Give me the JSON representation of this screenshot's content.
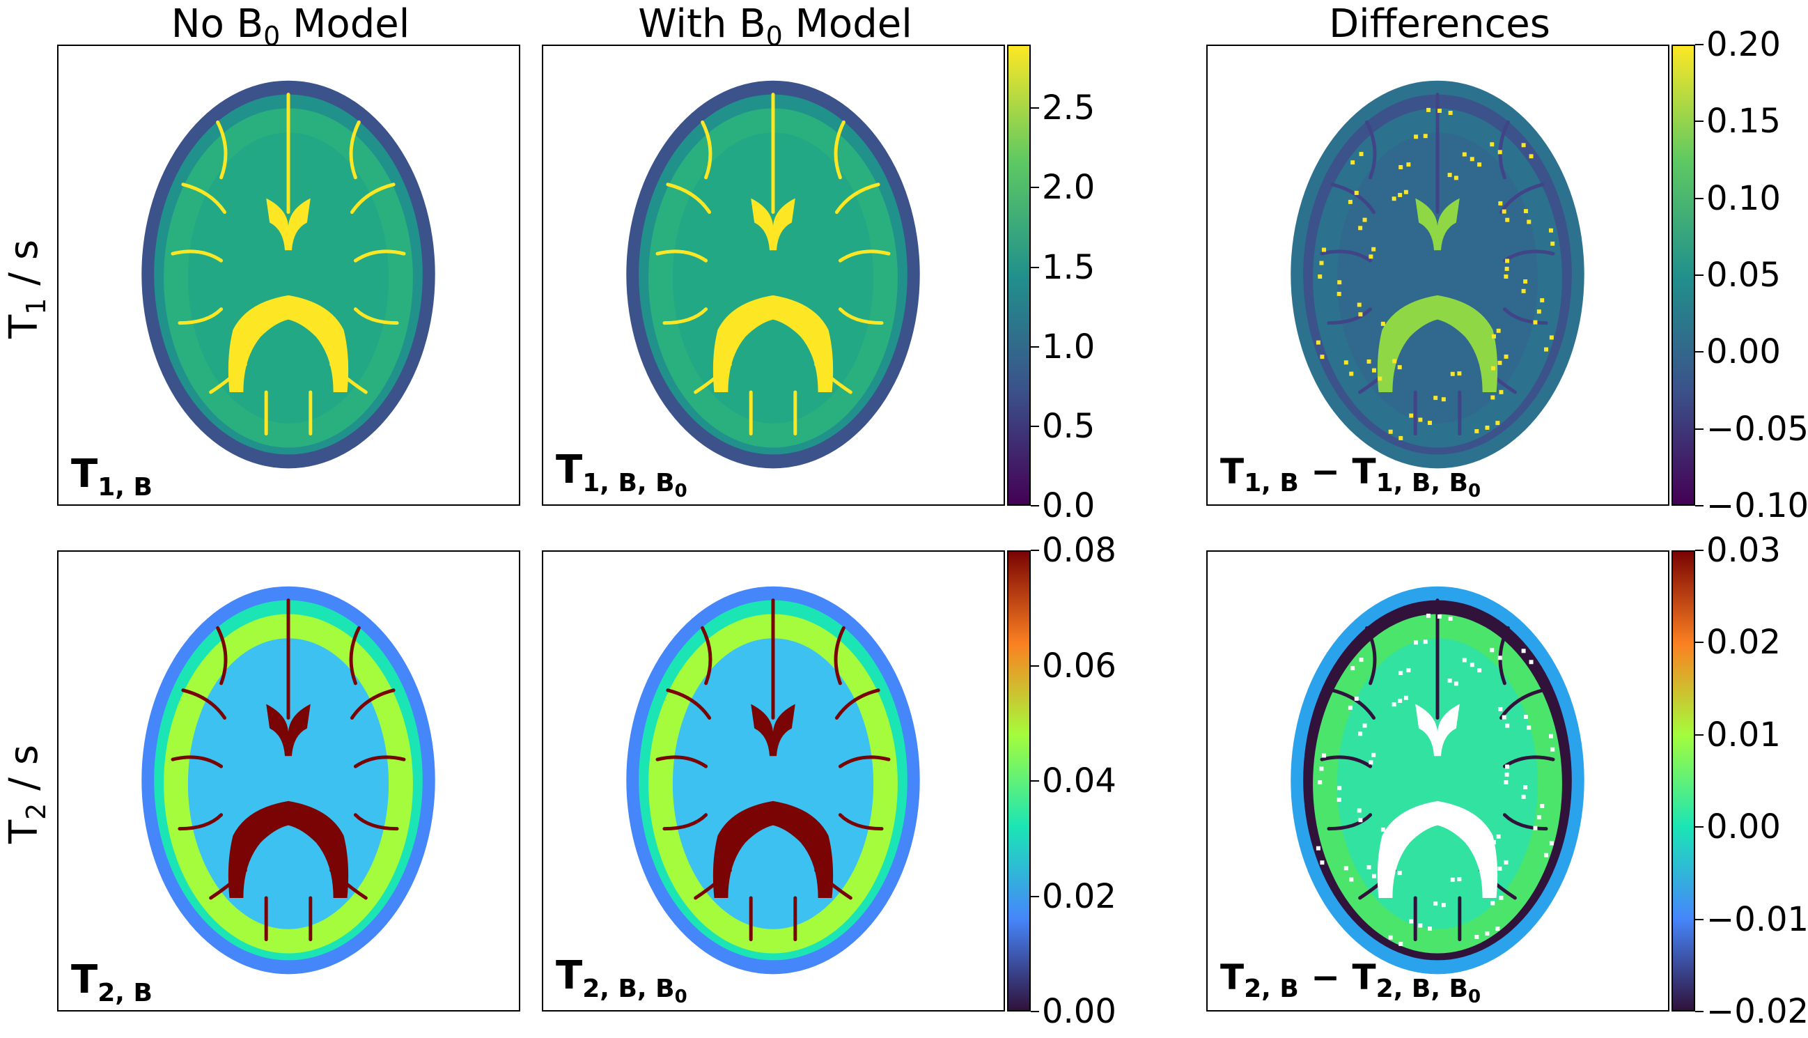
{
  "columns": {
    "c1": {
      "pre": "No B",
      "sub": "0",
      "post": " Model"
    },
    "c2": {
      "pre": "With B",
      "sub": "0",
      "post": " Model"
    },
    "c3": {
      "pre": "Differences",
      "sub": "",
      "post": ""
    }
  },
  "rows": {
    "r1": {
      "pre": "T",
      "sub": "1",
      "post": " / s"
    },
    "r2": {
      "pre": "T",
      "sub": "2",
      "post": " / s"
    }
  },
  "panel_labels": {
    "p11": "T1,B",
    "p12": "T1,B,B0",
    "p13": "T1,B − T1,B,B0",
    "p21": "T2,B",
    "p22": "T2,B,B0",
    "p23": "T2,B − T2,B,B0"
  },
  "colorbars": {
    "t1": {
      "colormap": "viridis",
      "ticks": [
        "0.0",
        "0.5",
        "1.0",
        "1.5",
        "2.0",
        "2.5"
      ],
      "values": [
        0.0,
        0.5,
        1.0,
        1.5,
        2.0,
        2.5
      ],
      "range": [
        0.0,
        2.9
      ]
    },
    "t1diff": {
      "colormap": "viridis",
      "ticks": [
        "−0.10",
        "−0.05",
        "0.00",
        "0.05",
        "0.10",
        "0.15",
        "0.20"
      ],
      "values": [
        -0.1,
        -0.05,
        0.0,
        0.05,
        0.1,
        0.15,
        0.2
      ],
      "range": [
        -0.1,
        0.2
      ]
    },
    "t2": {
      "colormap": "turbo",
      "ticks": [
        "0.00",
        "0.02",
        "0.04",
        "0.06",
        "0.08"
      ],
      "values": [
        0.0,
        0.02,
        0.04,
        0.06,
        0.08
      ],
      "range": [
        0.0,
        0.08
      ]
    },
    "t2diff": {
      "colormap": "turbo",
      "ticks": [
        "−0.02",
        "−0.01",
        "0.00",
        "0.01",
        "0.02",
        "0.03"
      ],
      "values": [
        -0.02,
        -0.01,
        0.0,
        0.01,
        0.02,
        0.03
      ],
      "range": [
        -0.02,
        0.03
      ]
    }
  },
  "colors": {
    "viridis": [
      "#440154",
      "#3b528b",
      "#21918c",
      "#5ec962",
      "#fde725"
    ],
    "turbo": [
      "#30123b",
      "#4686fb",
      "#1be5b5",
      "#a4fc3c",
      "#fb8022",
      "#7a0403"
    ]
  }
}
